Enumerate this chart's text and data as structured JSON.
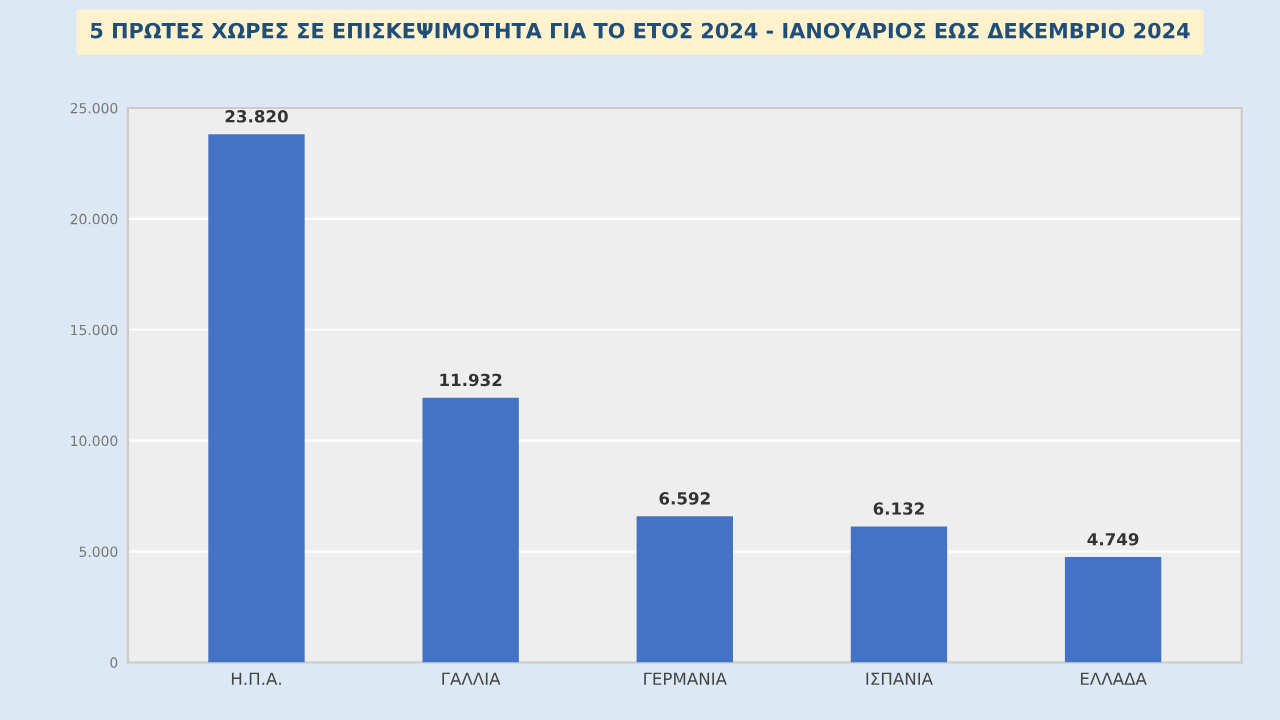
{
  "chart_data": {
    "type": "bar",
    "title": "5 ΠΡΩΤΕΣ ΧΩΡΕΣ ΣΕ ΕΠΙΣΚΕΨΙΜΟΤΗΤΑ ΓΙΑ ΤΟ ΕΤΟΣ 2024 - ΙΑΝΟΥΑΡΙΟΣ ΕΩΣ ΔΕΚΕΜΒΡΙΟ 2024",
    "categories": [
      "Η.Π.Α.",
      "ΓΑΛΛΙΑ",
      "ΓΕΡΜΑΝΙΑ",
      "ΙΣΠΑΝΙΑ",
      "ΕΛΛΑΔΑ"
    ],
    "values": [
      23820,
      11932,
      6592,
      6132,
      4749
    ],
    "value_labels": [
      "23.820",
      "11.932",
      "6.592",
      "6.132",
      "4.749"
    ],
    "color": "#4472c4",
    "ylim": [
      0,
      25000
    ],
    "yticks": [
      0,
      {
        "value": 5000,
        "label": "5.000"
      },
      {
        "value": 10000,
        "label": "10.000"
      },
      {
        "value": 15000,
        "label": "15.000"
      },
      {
        "value": 20000,
        "label": "20.000"
      },
      {
        "value": 25000,
        "label": "25.000"
      }
    ],
    "grid": "y"
  }
}
